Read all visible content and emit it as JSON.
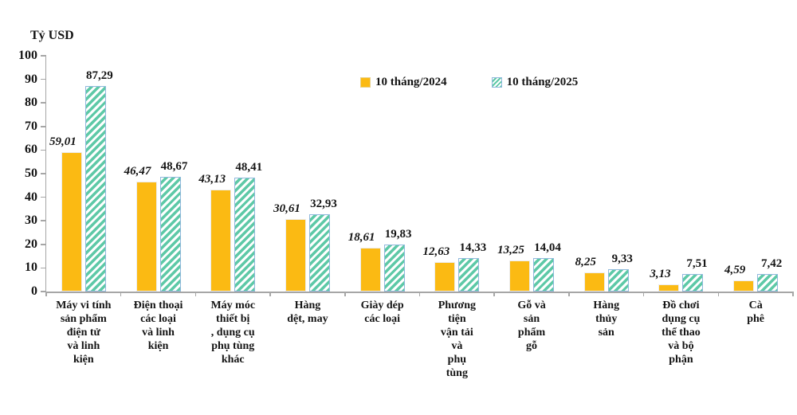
{
  "chart_data": {
    "type": "bar",
    "title": "Tỷ USD",
    "ylabel": "Tỷ USD",
    "xlabel": "",
    "ylim": [
      0,
      100
    ],
    "yticks": [
      0,
      10,
      20,
      30,
      40,
      50,
      60,
      70,
      80,
      90,
      100
    ],
    "grid": false,
    "legend_position": "top-center",
    "decimal_separator": ",",
    "categories": [
      "Máy vi tính\nsản phẩm\nđiện tử\nvà linh\nkiện",
      "Điện thoại\ncác loại\nvà linh\nkiện",
      "Máy móc\nthiết bị\n, dụng cụ\nphụ tùng\nkhác",
      "Hàng\ndệt, may",
      "Giày dép\ncác loại",
      "Phương\ntiện\nvận tải\nvà\nphụ\ntùng",
      "Gỗ và\nsản\nphẩm\ngỗ",
      "Hàng\nthủy\nsản",
      "Đồ chơi\ndụng cụ\nthể thao\nvà bộ\nphận",
      "Cà\nphê"
    ],
    "series": [
      {
        "name": "10 tháng/2024",
        "values": [
          59.01,
          46.47,
          43.13,
          30.61,
          18.61,
          12.63,
          13.25,
          8.25,
          3.13,
          4.59
        ],
        "display_values": [
          "59,01",
          "46,47",
          "43,13",
          "30,61",
          "18,61",
          "12,63",
          "13,25",
          "8,25",
          "3,13",
          "4,59"
        ],
        "color": "#FBBA13",
        "fill": "solid",
        "label_style": "bold-italic"
      },
      {
        "name": "10 tháng/2025",
        "values": [
          87.29,
          48.67,
          48.41,
          32.93,
          19.83,
          14.33,
          14.04,
          9.33,
          7.51,
          7.42
        ],
        "display_values": [
          "87,29",
          "48,67",
          "48,41",
          "32,93",
          "19,83",
          "14,33",
          "14,04",
          "9,33",
          "7,51",
          "7,42"
        ],
        "color": "#5EC9A7",
        "fill": "hatched-diagonal",
        "label_style": "bold"
      }
    ]
  },
  "colors": {
    "bar_2024": "#FBBA13",
    "bar_2025_stripe": "#5EC9A7",
    "bar_2025_border": "#8FB8DC",
    "axis": "#A6A6A6",
    "text": "#141414",
    "background": "#FFFFFF"
  }
}
